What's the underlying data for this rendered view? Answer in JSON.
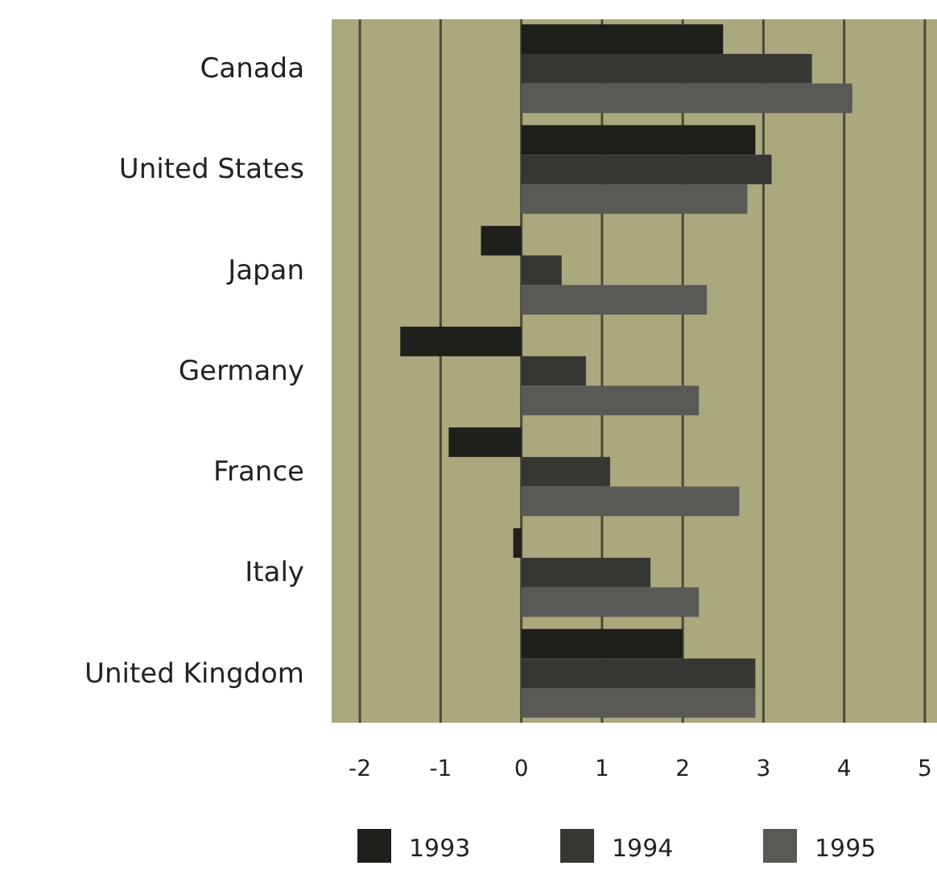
{
  "chart_data": {
    "type": "bar",
    "orientation": "horizontal",
    "categories": [
      "Canada",
      "United States",
      "Japan",
      "Germany",
      "France",
      "Italy",
      "United Kingdom"
    ],
    "series": [
      {
        "name": "1993",
        "color": "#1e1e1a",
        "values": [
          2.5,
          2.9,
          -0.5,
          -1.5,
          -0.9,
          -0.1,
          2.0
        ]
      },
      {
        "name": "1994",
        "color": "#363633",
        "values": [
          3.6,
          3.1,
          0.5,
          0.8,
          1.1,
          1.6,
          2.9
        ]
      },
      {
        "name": "1995",
        "color": "#595956",
        "values": [
          4.1,
          2.8,
          2.3,
          2.2,
          2.7,
          2.2,
          2.9
        ]
      }
    ],
    "xlim": [
      -2.35,
      5.15
    ],
    "xticks": [
      -2,
      -1,
      0,
      1,
      2,
      3,
      4,
      5
    ],
    "grid": "x",
    "legend": "bottom"
  }
}
